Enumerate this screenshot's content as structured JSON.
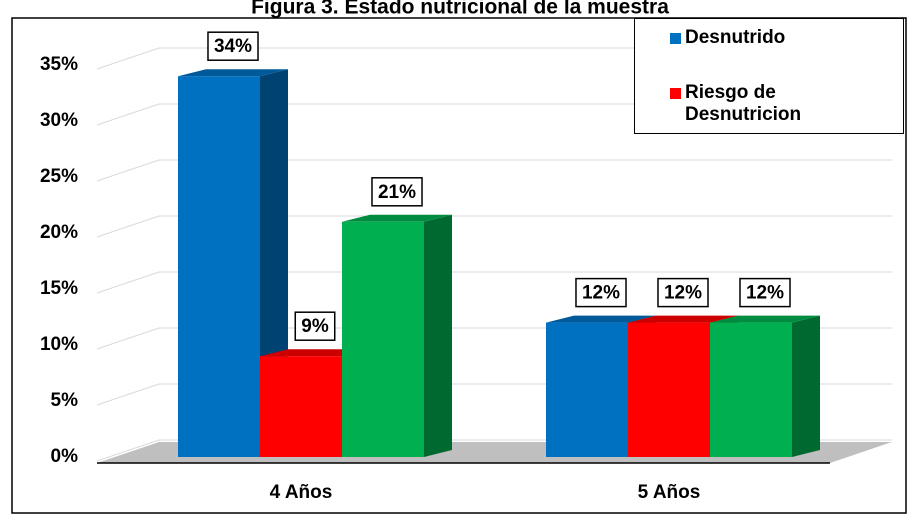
{
  "chart_data": {
    "type": "bar3d",
    "title": "Figura 3. Estado nutricional de la muestra",
    "categories": [
      "4 Años",
      "5 Años"
    ],
    "series": [
      {
        "name": "Desnutrido",
        "color": "#0070c0",
        "values": [
          34,
          12
        ],
        "value_labels": [
          "34%",
          "12%"
        ]
      },
      {
        "name": "Riesgo de Desnutricion",
        "color": "#ff0000",
        "values": [
          9,
          12
        ],
        "value_labels": [
          "9%",
          "12%"
        ]
      },
      {
        "color": "#00b050",
        "values": [
          21,
          12
        ],
        "value_labels": [
          "21%",
          "12%"
        ]
      }
    ],
    "ylim": [
      0,
      35
    ],
    "yticks": [
      {
        "value": 0,
        "label": "0%"
      },
      {
        "value": 5,
        "label": "5%"
      },
      {
        "value": 10,
        "label": "10%"
      },
      {
        "value": 15,
        "label": "15%"
      },
      {
        "value": 20,
        "label": "20%"
      },
      {
        "value": 25,
        "label": "25%"
      },
      {
        "value": 30,
        "label": "30%"
      },
      {
        "value": 35,
        "label": "35%"
      }
    ],
    "grid": true,
    "legend": "top-right"
  }
}
